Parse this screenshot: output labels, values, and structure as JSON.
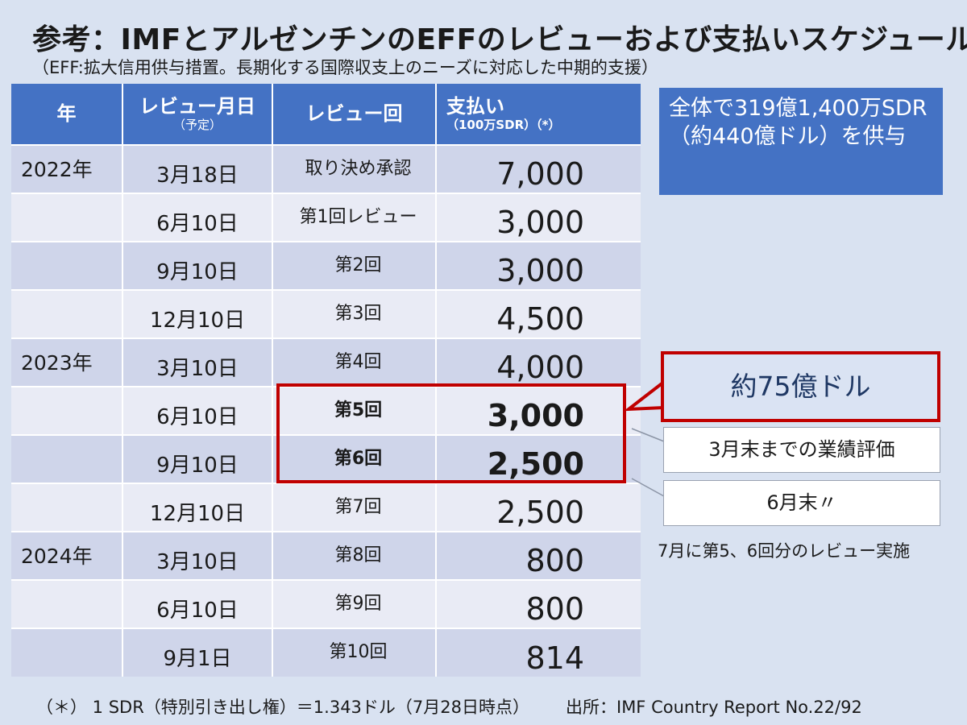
{
  "title": "参考：IMFとアルゼンチンのEFFのレビューおよび支払いスケジュール",
  "subtitle": "（EFF:拡大信用供与措置。長期化する国際収支上のニーズに対応した中期的支援）",
  "table": {
    "headers": {
      "year": "年",
      "date": "レビュー月日",
      "date_sub": "（予定）",
      "review": "レビュー回",
      "payment": "支払い",
      "payment_sub": "（100万SDR）（*）"
    },
    "rows": [
      {
        "year": "2022年",
        "date": "3月18日",
        "review": "取り決め承認",
        "amount": "7,000"
      },
      {
        "year": "",
        "date": "6月10日",
        "review": "第1回レビュー",
        "amount": "3,000"
      },
      {
        "year": "",
        "date": "9月10日",
        "review": "第2回",
        "amount": "3,000"
      },
      {
        "year": "",
        "date": "12月10日",
        "review": "第3回",
        "amount": "4,500"
      },
      {
        "year": "2023年",
        "date": "3月10日",
        "review": "第4回",
        "amount": "4,000"
      },
      {
        "year": "",
        "date": "6月10日",
        "review": "第5回",
        "amount": "3,000"
      },
      {
        "year": "",
        "date": "9月10日",
        "review": "第6回",
        "amount": "2,500"
      },
      {
        "year": "",
        "date": "12月10日",
        "review": "第7回",
        "amount": "2,500"
      },
      {
        "year": "2024年",
        "date": "3月10日",
        "review": "第8回",
        "amount": "800"
      },
      {
        "year": "",
        "date": "6月10日",
        "review": "第9回",
        "amount": "800"
      },
      {
        "year": "",
        "date": "9月1日",
        "review": "第10回",
        "amount": "814"
      }
    ]
  },
  "total_box": "全体で319億1,400万SDR（約440億ドル）を供与",
  "callout": "約75億ドル",
  "note1": "3月末までの業績評価",
  "note2": "6月末〃",
  "side_note": "7月に第5、6回分のレビュー実施",
  "footnote": "（＊） 1 SDR（特別引き出し権）＝1.343ドル（7月28日時点）",
  "source": "出所：IMF Country Report No.22/92",
  "colors": {
    "header_bg": "#4472c4",
    "highlight_border": "#c00000",
    "row_odd": "#cfd5ea",
    "row_even": "#e9ebf5",
    "page_bg": "#d9e2f1"
  }
}
